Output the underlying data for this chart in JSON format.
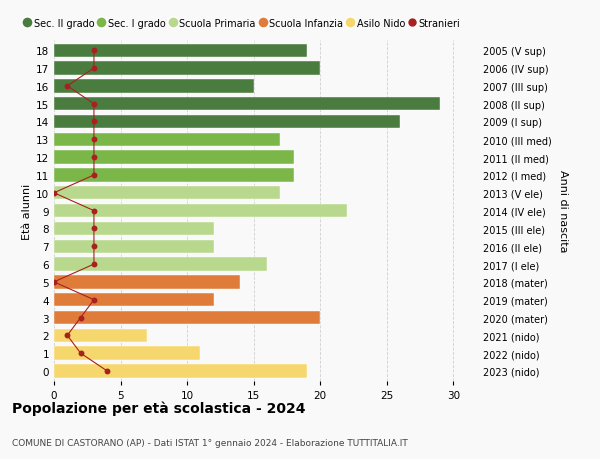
{
  "ages": [
    18,
    17,
    16,
    15,
    14,
    13,
    12,
    11,
    10,
    9,
    8,
    7,
    6,
    5,
    4,
    3,
    2,
    1,
    0
  ],
  "right_labels": [
    "2005 (V sup)",
    "2006 (IV sup)",
    "2007 (III sup)",
    "2008 (II sup)",
    "2009 (I sup)",
    "2010 (III med)",
    "2011 (II med)",
    "2012 (I med)",
    "2013 (V ele)",
    "2014 (IV ele)",
    "2015 (III ele)",
    "2016 (II ele)",
    "2017 (I ele)",
    "2018 (mater)",
    "2019 (mater)",
    "2020 (mater)",
    "2021 (nido)",
    "2022 (nido)",
    "2023 (nido)"
  ],
  "bar_values": [
    19,
    20,
    15,
    29,
    26,
    17,
    18,
    18,
    17,
    22,
    12,
    12,
    16,
    14,
    12,
    20,
    7,
    11,
    19
  ],
  "bar_colors": [
    "#4a7c3f",
    "#4a7c3f",
    "#4a7c3f",
    "#4a7c3f",
    "#4a7c3f",
    "#7ab648",
    "#7ab648",
    "#7ab648",
    "#b8d98d",
    "#b8d98d",
    "#b8d98d",
    "#b8d98d",
    "#b8d98d",
    "#e07c3a",
    "#e07c3a",
    "#e07c3a",
    "#f5d76e",
    "#f5d76e",
    "#f5d76e"
  ],
  "stranieri_x": [
    3,
    3,
    1,
    3,
    3,
    3,
    3,
    3,
    0,
    3,
    3,
    3,
    3,
    0,
    3,
    2,
    1,
    2,
    4
  ],
  "title": "Popolazione per età scolastica - 2024",
  "subtitle": "COMUNE DI CASTORANO (AP) - Dati ISTAT 1° gennaio 2024 - Elaborazione TUTTITALIA.IT",
  "xlabel_left": "Età alunni",
  "xlabel_right": "Anni di nascita",
  "colors": {
    "sec2": "#4a7c3f",
    "sec1": "#7ab648",
    "primaria": "#b8d98d",
    "infanzia": "#e07c3a",
    "nido": "#f5d76e",
    "stranieri": "#a82020"
  },
  "legend_labels": [
    "Sec. II grado",
    "Sec. I grado",
    "Scuola Primaria",
    "Scuola Infanzia",
    "Asilo Nido",
    "Stranieri"
  ],
  "background_color": "#f9f9f9",
  "grid_color": "#d0d0d0",
  "xlim": [
    0,
    32
  ],
  "bar_height": 0.75,
  "xticks": [
    0,
    5,
    10,
    15,
    20,
    25,
    30
  ]
}
